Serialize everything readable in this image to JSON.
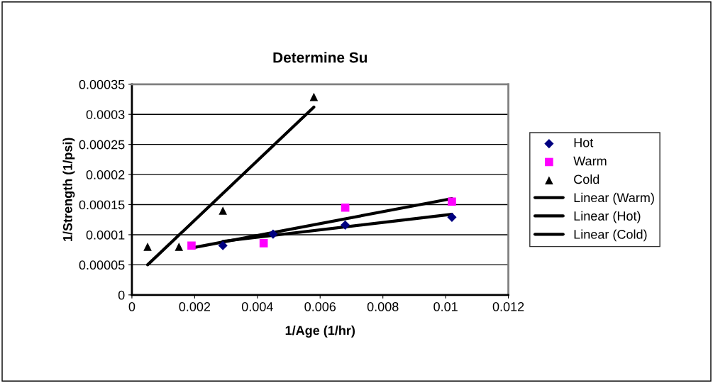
{
  "chart_data": {
    "type": "scatter",
    "title": "Determine Su",
    "xlabel": "1/Age (1/hr)",
    "ylabel": "1/Strength (1/psi)",
    "xlim": [
      0,
      0.012
    ],
    "xticks": [
      0,
      0.002,
      0.004,
      0.006,
      0.008,
      0.01,
      0.012
    ],
    "ylim": [
      0,
      0.00035
    ],
    "yticks": [
      0,
      {
        "value": 5e-05,
        "label": "0.00005"
      },
      {
        "value": 0.0001,
        "label": "0.0001"
      },
      {
        "value": 0.00015,
        "label": "0.00015"
      },
      {
        "value": 0.0002,
        "label": "0.0002"
      },
      {
        "value": 0.00025,
        "label": "0.00025"
      },
      {
        "value": 0.0003,
        "label": "0.0003"
      },
      {
        "value": 0.00035,
        "label": "0.00035"
      }
    ],
    "grid": "y",
    "legend": "right",
    "series": [
      {
        "name": "Hot",
        "marker": "diamond",
        "color": "#000080",
        "x": [
          0.0029,
          0.0045,
          0.0068,
          0.0102
        ],
        "values": [
          8.2e-05,
          0.000101,
          0.000116,
          0.000129
        ]
      },
      {
        "name": "Warm",
        "marker": "square",
        "color": "#ff00ff",
        "x": [
          0.0019,
          0.0042,
          0.0068,
          0.0102
        ],
        "values": [
          8.2e-05,
          8.6e-05,
          0.000145,
          0.000155
        ]
      },
      {
        "name": "Cold",
        "marker": "triangle",
        "color": "#000000",
        "x": [
          0.0005,
          0.0015,
          0.0029,
          0.0058
        ],
        "values": [
          8e-05,
          8e-05,
          0.00014,
          0.000329
        ]
      },
      {
        "name": "Linear (Warm)",
        "type": "line",
        "marker": "none",
        "color": "#000000",
        "x": [
          0.0019,
          0.0102
        ],
        "values": [
          7.8e-05,
          0.00016
        ]
      },
      {
        "name": "Linear (Hot)",
        "type": "line",
        "marker": "none",
        "color": "#000000",
        "x": [
          0.0029,
          0.0102
        ],
        "values": [
          8.9e-05,
          0.000134
        ]
      },
      {
        "name": "Linear (Cold)",
        "type": "line",
        "marker": "none",
        "color": "#000000",
        "x": [
          0.0005,
          0.0058
        ],
        "values": [
          5e-05,
          0.000312
        ]
      }
    ]
  }
}
